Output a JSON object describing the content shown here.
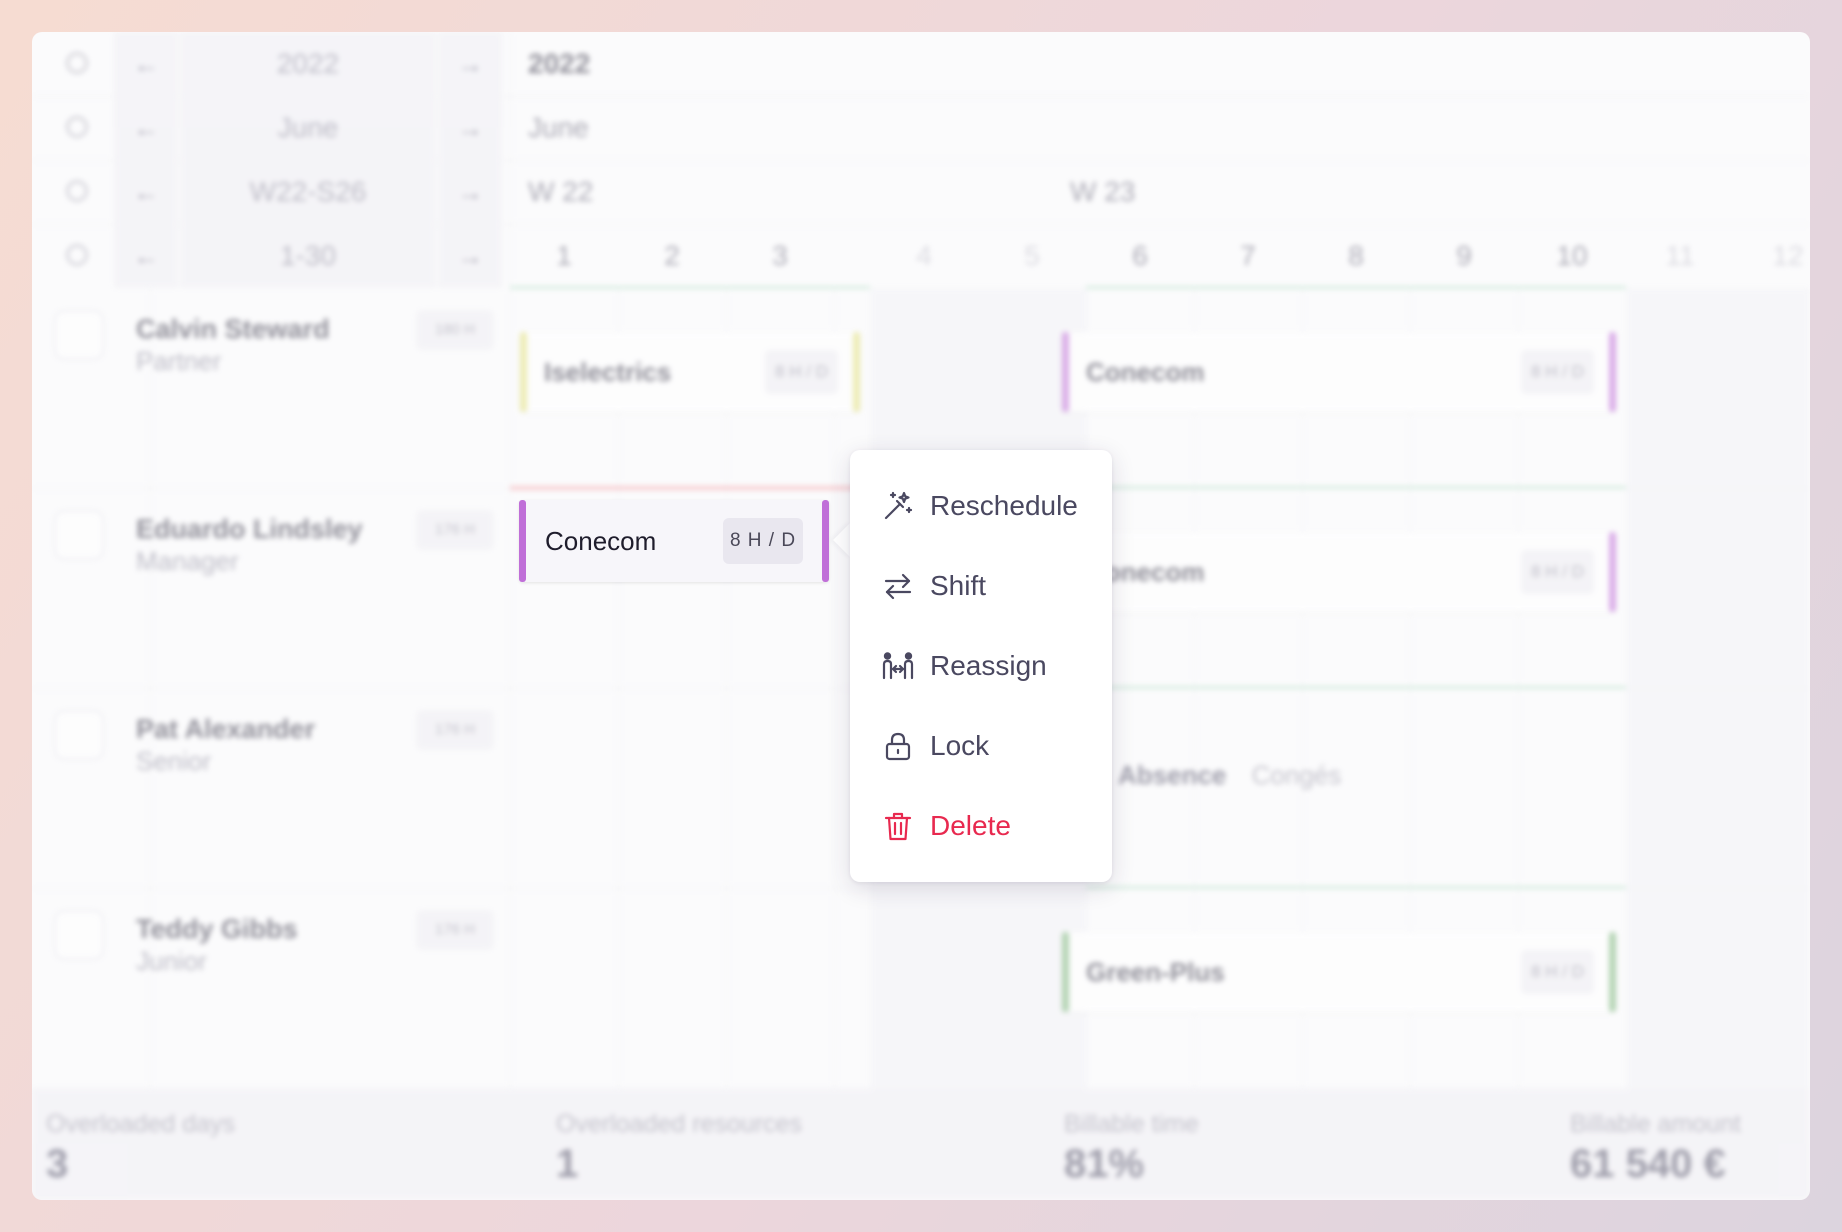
{
  "header": {
    "year": {
      "selector": "2022",
      "label": "2022"
    },
    "month": {
      "selector": "June",
      "label": "June"
    },
    "week": {
      "selector": "W22-S26",
      "labels": [
        "W 22",
        "W 23"
      ]
    },
    "days": {
      "selector": "1-30",
      "labels": [
        "1",
        "2",
        "3",
        "4",
        "5",
        "6",
        "7",
        "8",
        "9",
        "10",
        "11",
        "12"
      ]
    },
    "arrow_left": "←",
    "arrow_right": "→"
  },
  "resources": [
    {
      "name": "Calvin Steward",
      "role": "Partner",
      "capacity": "180 H"
    },
    {
      "name": "Eduardo Lindsley",
      "role": "Manager",
      "capacity": "176 H"
    },
    {
      "name": "Pat Alexander",
      "role": "Senior",
      "capacity": "176 H"
    },
    {
      "name": "Teddy Gibbs",
      "role": "Junior",
      "capacity": "176 H"
    }
  ],
  "assignments": {
    "a1": {
      "project": "Iselectrics",
      "rate": "8 H / D",
      "color": "#e2e07a"
    },
    "a2": {
      "project": "Conecom",
      "rate": "8 H / D",
      "color": "#c06fd8"
    },
    "a3": {
      "project": "Conecom",
      "rate": "8 H / D",
      "color": "#c06fd8"
    },
    "a4": {
      "project": "Conecom",
      "rate": "8 H / D",
      "color": "#c06fd8"
    },
    "a5": {
      "project": "Green-Plus",
      "rate": "8 H / D",
      "color": "#7bb57a"
    }
  },
  "absence": {
    "label": "Absence",
    "type": "Congés"
  },
  "context_menu": {
    "items": [
      {
        "label": "Reschedule",
        "icon": "magic-wand-icon"
      },
      {
        "label": "Shift",
        "icon": "arrows-swap-icon"
      },
      {
        "label": "Reassign",
        "icon": "people-exchange-icon"
      },
      {
        "label": "Lock",
        "icon": "lock-icon"
      },
      {
        "label": "Delete",
        "icon": "trash-icon",
        "color": "#e8294f"
      }
    ]
  },
  "stats": [
    {
      "label": "Overloaded days",
      "value": "3"
    },
    {
      "label": "Overloaded resources",
      "value": "1"
    },
    {
      "label": "Billable time",
      "value": "81%"
    },
    {
      "label": "Billable amount",
      "value": "61 540 €"
    }
  ]
}
